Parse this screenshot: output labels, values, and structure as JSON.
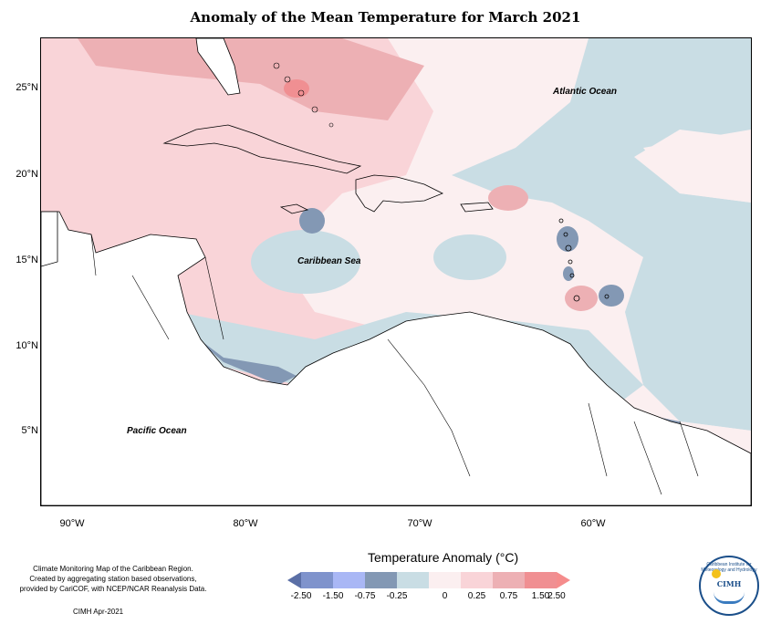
{
  "title": "Anomaly of the Mean Temperature for March 2021",
  "map": {
    "lat_ticks": [
      "25°N",
      "20°N",
      "15°N",
      "10°N",
      "5°N"
    ],
    "lon_ticks": [
      "90°W",
      "80°W",
      "70°W",
      "60°W"
    ],
    "ocean_labels": {
      "atlantic": "Atlantic Ocean",
      "caribbean": "Caribbean Sea",
      "pacific": "Pacific Ocean"
    },
    "land_color": "#ffffff",
    "coastline_color": "#000000"
  },
  "legend": {
    "title": "Temperature Anomaly (°C)",
    "labels": [
      "-2.50",
      "-1.50",
      "-0.75",
      "-0.25",
      "0",
      "0.25",
      "0.75",
      "1.50",
      "2.50"
    ],
    "colors": [
      "#5b6fa6",
      "#7f93cc",
      "#a9b7f5",
      "#8398b4",
      "#c9dde4",
      "#fbeff0",
      "#f9d4d8",
      "#edb0b4",
      "#f08f92",
      "#f58c8c"
    ]
  },
  "footer": {
    "note_lines": [
      "Climate Monitoring Map of the Caribbean Region.",
      "Created by aggregating station based observations,",
      "provided by CariCOF, with NCEP/NCAR Reanalysis Data."
    ],
    "credit": "CIMH Apr-2021"
  },
  "logo": {
    "text": "CIMH",
    "ring_text": "Caribbean Institute for Meteorology and Hydrology"
  }
}
